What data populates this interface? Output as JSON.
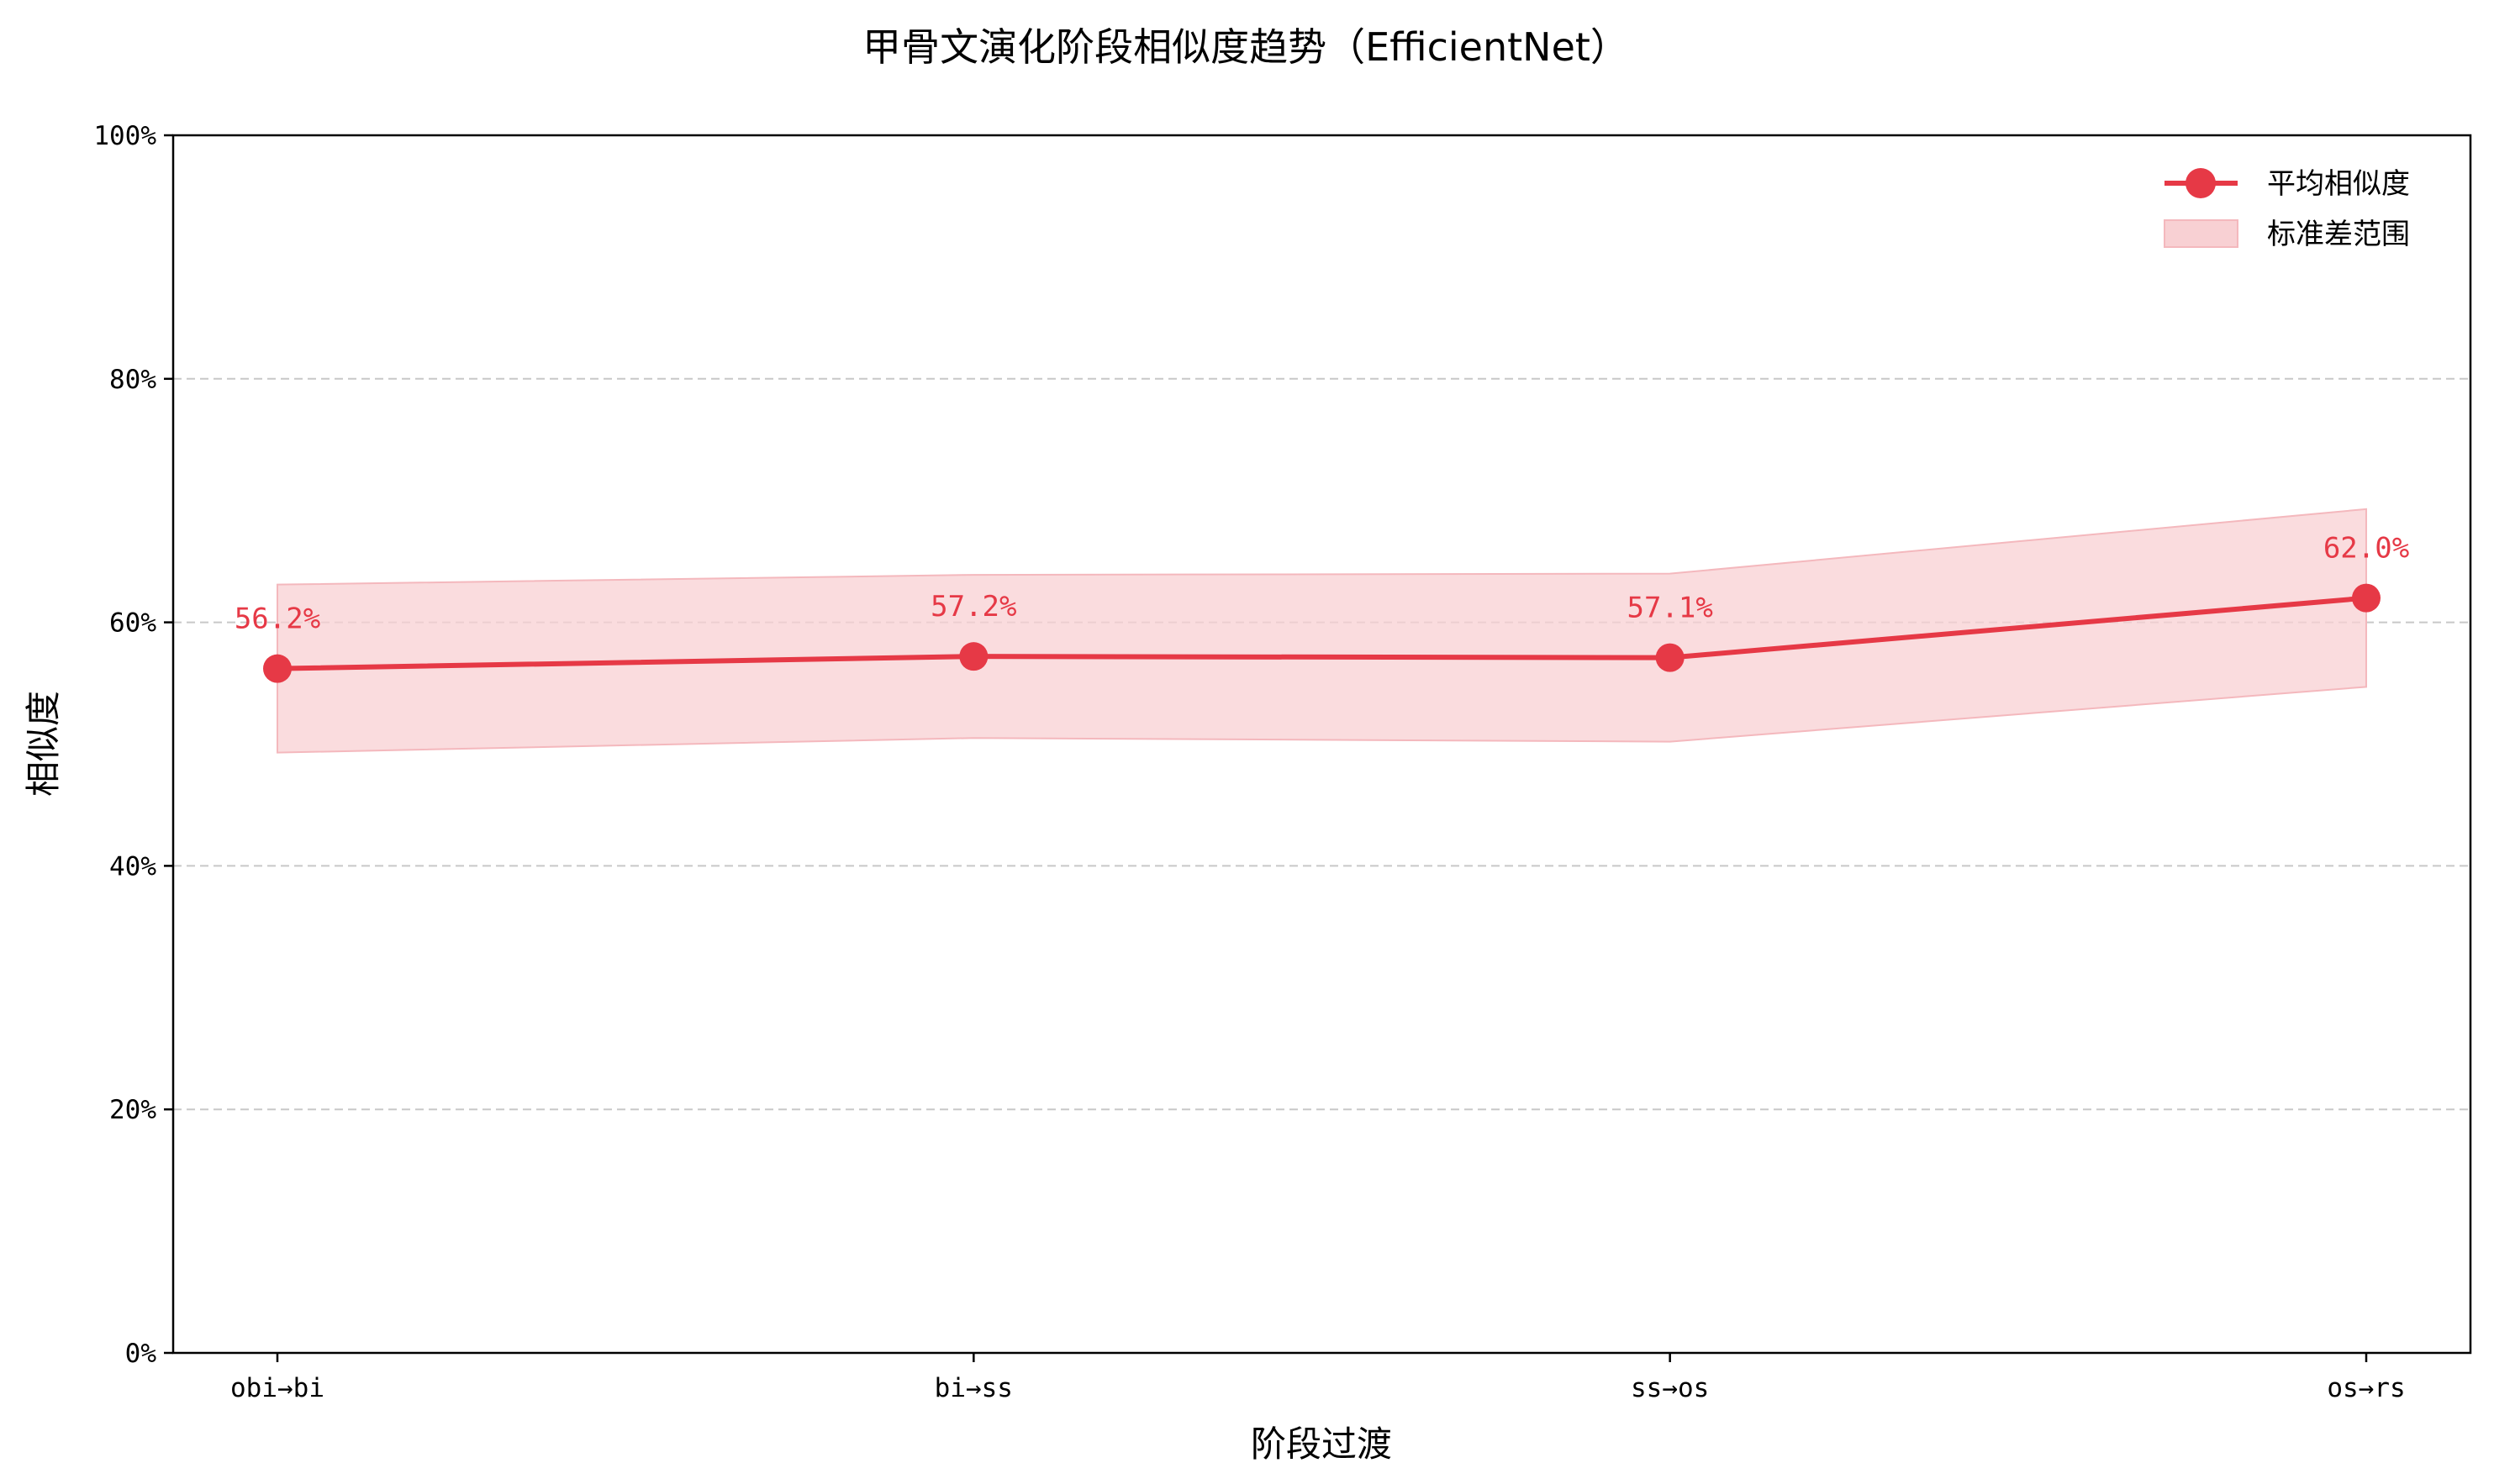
{
  "chart_data": {
    "type": "line",
    "title": "甲骨文演化阶段相似度趋势（EfficientNet）",
    "xlabel": "阶段过渡",
    "ylabel": "相似度",
    "categories": [
      "obi→bi",
      "bi→ss",
      "ss→os",
      "os→rs"
    ],
    "series": [
      {
        "name": "平均相似度",
        "values": [
          56.2,
          57.2,
          57.1,
          62.0
        ],
        "labels": [
          "56.2%",
          "57.2%",
          "57.1%",
          "62.0%"
        ],
        "color": "#e63946"
      }
    ],
    "band": {
      "name": "标准差范围",
      "lower": [
        49.3,
        50.5,
        50.2,
        54.7
      ],
      "upper": [
        63.1,
        63.9,
        64.0,
        69.3
      ],
      "color": "#f8d0d3"
    },
    "ylim": [
      0,
      100
    ],
    "yticks": [
      0,
      20,
      40,
      60,
      80,
      100
    ],
    "ytick_labels": [
      "0%",
      "20%",
      "40%",
      "60%",
      "80%",
      "100%"
    ],
    "grid": "y-dashed",
    "legend_position": "top-right"
  }
}
